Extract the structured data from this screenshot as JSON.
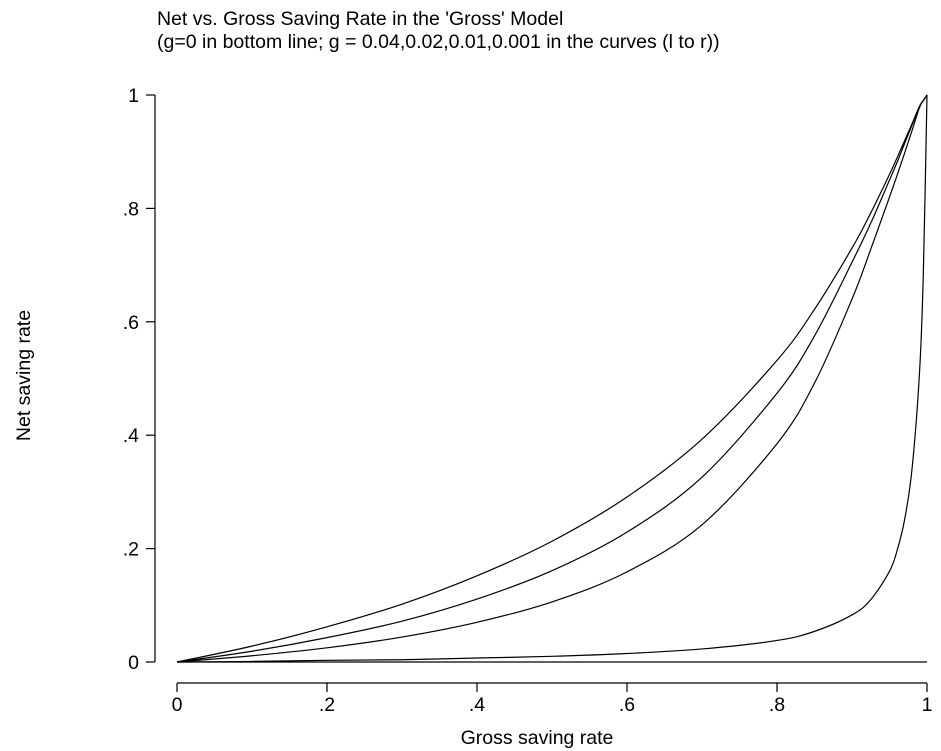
{
  "chart_data": {
    "type": "line",
    "title": "Net vs. Gross Saving Rate in the 'Gross' Model",
    "subtitle": "(g=0 in bottom line; g = 0.04,0.02,0.01,0.001 in the curves (l to r))",
    "xlabel": "Gross saving rate",
    "ylabel": "Net saving rate",
    "xlim": [
      0,
      1
    ],
    "ylim": [
      0,
      1
    ],
    "x_ticks": [
      {
        "value": 0,
        "label": "0"
      },
      {
        "value": 0.2,
        "label": ".2"
      },
      {
        "value": 0.4,
        "label": ".4"
      },
      {
        "value": 0.6,
        "label": ".6"
      },
      {
        "value": 0.8,
        "label": ".8"
      },
      {
        "value": 1,
        "label": "1"
      }
    ],
    "y_ticks": [
      {
        "value": 0,
        "label": "0"
      },
      {
        "value": 0.2,
        "label": ".2"
      },
      {
        "value": 0.4,
        "label": ".4"
      },
      {
        "value": 0.6,
        "label": ".6"
      },
      {
        "value": 0.8,
        "label": ".8"
      },
      {
        "value": 1,
        "label": "1"
      }
    ],
    "grid": false,
    "line_color": "#000000",
    "x": [
      0,
      0.1,
      0.2,
      0.3,
      0.4,
      0.5,
      0.6,
      0.7,
      0.8,
      0.85,
      0.9,
      0.925,
      0.95,
      0.96,
      0.97,
      0.98,
      0.99,
      0.995,
      1
    ],
    "series": [
      {
        "g": 0.04,
        "values": [
          0,
          0.028,
          0.062,
          0.102,
          0.152,
          0.213,
          0.291,
          0.393,
          0.532,
          0.622,
          0.73,
          0.792,
          0.86,
          0.889,
          0.919,
          0.949,
          0.98,
          0.99,
          1
        ]
      },
      {
        "g": 0.02,
        "values": [
          0,
          0.019,
          0.043,
          0.072,
          0.111,
          0.161,
          0.229,
          0.326,
          0.474,
          0.575,
          0.705,
          0.774,
          0.85,
          0.881,
          0.914,
          0.947,
          0.98,
          0.99,
          1
        ]
      },
      {
        "g": 0.01,
        "values": [
          0,
          0.011,
          0.025,
          0.044,
          0.07,
          0.106,
          0.159,
          0.242,
          0.385,
          0.492,
          0.64,
          0.728,
          0.82,
          0.858,
          0.897,
          0.937,
          0.978,
          0.99,
          1
        ]
      },
      {
        "g": 0.001,
        "values": [
          0,
          0.001,
          0.003,
          0.004,
          0.007,
          0.01,
          0.015,
          0.023,
          0.038,
          0.054,
          0.083,
          0.11,
          0.16,
          0.196,
          0.25,
          0.34,
          0.51,
          0.68,
          1
        ]
      },
      {
        "g": 0,
        "values": [
          0,
          0,
          0,
          0,
          0,
          0,
          0,
          0,
          0,
          0,
          0,
          0,
          0,
          0,
          0,
          0,
          0,
          0,
          0
        ]
      }
    ]
  }
}
